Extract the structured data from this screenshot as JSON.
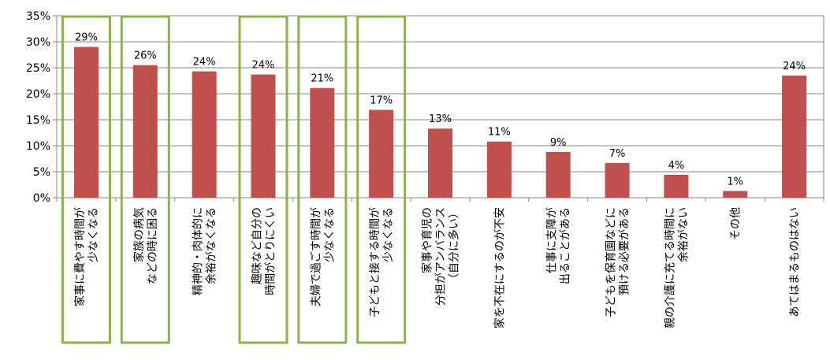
{
  "chart_data": {
    "type": "bar",
    "title": "",
    "xlabel": "",
    "ylabel": "",
    "ylim": [
      0,
      35
    ],
    "y_ticks": [
      "0%",
      "5%",
      "10%",
      "15%",
      "20%",
      "25%",
      "30%",
      "35%"
    ],
    "y_tick_values": [
      0,
      5,
      10,
      15,
      20,
      25,
      30,
      35
    ],
    "grid": "horizontal",
    "bar_color": "#c0504d",
    "grid_color": "#868686",
    "highlight_color": "#8fb34c",
    "categories": [
      [
        "家事に費やす時間が",
        "少なくなる"
      ],
      [
        "家族の病気",
        "などの時に困る"
      ],
      [
        "精神的・肉体的に",
        "余裕がなくなる"
      ],
      [
        "趣味など自分の",
        "時間がとりにくい"
      ],
      [
        "夫婦で過ごす時間が",
        "少なくなる"
      ],
      [
        "子どもと接する時間が",
        "少なくなる"
      ],
      [
        "家事や育児の",
        "分担がアンバランス",
        "（自分に多い）"
      ],
      [
        "家を不在にするのが不安"
      ],
      [
        "仕事に支障が",
        "出ることがある"
      ],
      [
        "子どもを保育園などに",
        "預ける必要がある"
      ],
      [
        "親の介護に充てる時間に",
        "余裕がない"
      ],
      [
        "その他"
      ],
      [
        "あてはまるものはない"
      ]
    ],
    "values": [
      29,
      25.5,
      24.3,
      23.7,
      21.1,
      16.9,
      13.3,
      10.8,
      8.8,
      6.7,
      4.4,
      1.3,
      23.5
    ],
    "value_labels": [
      "29%",
      "26%",
      "24%",
      "24%",
      "21%",
      "17%",
      "13%",
      "11%",
      "9%",
      "7%",
      "4%",
      "1%",
      "24%"
    ],
    "highlighted": [
      0,
      1,
      3,
      4,
      5
    ]
  }
}
